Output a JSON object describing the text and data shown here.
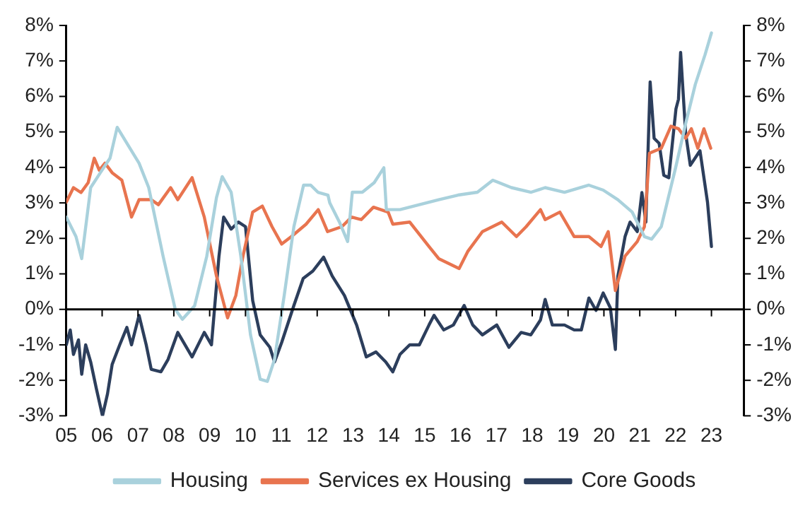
{
  "chart_data": {
    "type": "line",
    "legend": "bottom",
    "grid": false,
    "ref_lines": [
      {
        "axis": "y",
        "value": 0,
        "color": "#000000"
      }
    ],
    "marker": "none",
    "line_style": "solid",
    "xlim": [
      2005,
      2023.9
    ],
    "xticks": [
      {
        "value": 2005,
        "label": "05"
      },
      {
        "value": 2006,
        "label": "06"
      },
      {
        "value": 2007,
        "label": "07"
      },
      {
        "value": 2008,
        "label": "08"
      },
      {
        "value": 2009,
        "label": "09"
      },
      {
        "value": 2010,
        "label": "10"
      },
      {
        "value": 2011,
        "label": "11"
      },
      {
        "value": 2012,
        "label": "12"
      },
      {
        "value": 2013,
        "label": "13"
      },
      {
        "value": 2014,
        "label": "14"
      },
      {
        "value": 2015,
        "label": "15"
      },
      {
        "value": 2016,
        "label": "16"
      },
      {
        "value": 2017,
        "label": "17"
      },
      {
        "value": 2018,
        "label": "18"
      },
      {
        "value": 2019,
        "label": "19"
      },
      {
        "value": 2020,
        "label": "20"
      },
      {
        "value": 2021,
        "label": "21"
      },
      {
        "value": 2022,
        "label": "22"
      },
      {
        "value": 2023,
        "label": "23"
      }
    ],
    "ylim": [
      -3,
      8
    ],
    "yticks": [
      {
        "value": -3,
        "label": "-3%"
      },
      {
        "value": -2,
        "label": "-2%"
      },
      {
        "value": -1,
        "label": "-1%"
      },
      {
        "value": 0,
        "label": "0%"
      },
      {
        "value": 1,
        "label": "1%"
      },
      {
        "value": 2,
        "label": "2%"
      },
      {
        "value": 3,
        "label": "3%"
      },
      {
        "value": 4,
        "label": "4%"
      },
      {
        "value": 5,
        "label": "5%"
      },
      {
        "value": 6,
        "label": "6%"
      },
      {
        "value": 7,
        "label": "7%"
      },
      {
        "value": 8,
        "label": "8%"
      }
    ],
    "y2lim": [
      -3,
      8
    ],
    "y2ticks": [
      {
        "value": -3,
        "label": "-3%"
      },
      {
        "value": -2,
        "label": "-2%"
      },
      {
        "value": -1,
        "label": "-1%"
      },
      {
        "value": 0,
        "label": "0%"
      },
      {
        "value": 1,
        "label": "1%"
      },
      {
        "value": 2,
        "label": "2%"
      },
      {
        "value": 3,
        "label": "3%"
      },
      {
        "value": 4,
        "label": "4%"
      },
      {
        "value": 5,
        "label": "5%"
      },
      {
        "value": 6,
        "label": "6%"
      },
      {
        "value": 7,
        "label": "7%"
      },
      {
        "value": 8,
        "label": "8%"
      }
    ],
    "series": [
      {
        "name": "Housing",
        "color": "#a9d1dc",
        "x": [
          2005.0,
          2005.27,
          2005.43,
          2005.68,
          2005.95,
          2006.22,
          2006.42,
          2006.69,
          2007.03,
          2007.3,
          2007.7,
          2008.04,
          2008.24,
          2008.58,
          2008.92,
          2009.19,
          2009.35,
          2009.6,
          2009.87,
          2010.14,
          2010.41,
          2010.61,
          2010.81,
          2011.08,
          2011.35,
          2011.62,
          2011.82,
          2012.02,
          2012.3,
          2012.35,
          2012.62,
          2012.85,
          2012.98,
          2013.26,
          2013.59,
          2013.86,
          2013.93,
          2014.31,
          2014.85,
          2015.39,
          2015.93,
          2016.47,
          2016.9,
          2017.42,
          2017.97,
          2018.36,
          2018.9,
          2019.58,
          2019.98,
          2020.39,
          2020.79,
          2021.13,
          2021.33,
          2021.6,
          2022.0,
          2022.28,
          2022.55,
          2022.82,
          2023.0
        ],
        "values": [
          2.6,
          2.05,
          1.43,
          3.43,
          3.85,
          4.26,
          5.13,
          4.68,
          4.12,
          3.43,
          1.5,
          0.0,
          -0.28,
          0.1,
          1.5,
          3.15,
          3.74,
          3.3,
          1.5,
          -0.72,
          -1.97,
          -2.03,
          -1.41,
          0.39,
          2.33,
          3.5,
          3.5,
          3.3,
          3.22,
          3.0,
          2.46,
          1.91,
          3.3,
          3.3,
          3.57,
          3.99,
          2.81,
          2.81,
          2.95,
          3.09,
          3.22,
          3.3,
          3.64,
          3.43,
          3.3,
          3.43,
          3.3,
          3.5,
          3.36,
          3.09,
          2.74,
          2.05,
          1.98,
          2.33,
          3.99,
          5.23,
          6.34,
          7.17,
          7.79
        ]
      },
      {
        "name": "Services ex Housing",
        "color": "#e8744f",
        "x": [
          2005.0,
          2005.2,
          2005.41,
          2005.61,
          2005.78,
          2005.92,
          2006.08,
          2006.28,
          2006.55,
          2006.82,
          2007.03,
          2007.37,
          2007.57,
          2007.91,
          2008.11,
          2008.51,
          2008.85,
          2009.19,
          2009.5,
          2009.73,
          2009.93,
          2010.2,
          2010.47,
          2010.74,
          2011.01,
          2011.28,
          2011.69,
          2012.03,
          2012.29,
          2012.69,
          2012.96,
          2013.23,
          2013.57,
          2013.98,
          2014.11,
          2014.58,
          2015.12,
          2015.39,
          2015.96,
          2016.2,
          2016.61,
          2017.15,
          2017.56,
          2017.83,
          2018.23,
          2018.36,
          2018.77,
          2019.17,
          2019.58,
          2019.92,
          2020.12,
          2020.32,
          2020.59,
          2020.93,
          2021.13,
          2021.27,
          2021.6,
          2021.87,
          2022.08,
          2022.28,
          2022.44,
          2022.62,
          2022.79,
          2022.98
        ],
        "values": [
          3.02,
          3.43,
          3.29,
          3.57,
          4.26,
          3.92,
          4.12,
          3.85,
          3.64,
          2.6,
          3.09,
          3.09,
          2.95,
          3.43,
          3.09,
          3.71,
          2.6,
          0.94,
          -0.24,
          0.39,
          1.5,
          2.74,
          2.91,
          2.33,
          1.84,
          2.05,
          2.4,
          2.81,
          2.19,
          2.33,
          2.6,
          2.53,
          2.88,
          2.74,
          2.4,
          2.46,
          1.77,
          1.43,
          1.15,
          1.63,
          2.19,
          2.46,
          2.05,
          2.33,
          2.81,
          2.53,
          2.74,
          2.05,
          2.05,
          1.77,
          2.19,
          0.53,
          1.5,
          1.91,
          2.33,
          4.4,
          4.54,
          5.16,
          5.09,
          4.82,
          5.09,
          4.54,
          5.09,
          4.54
        ]
      },
      {
        "name": "Core Goods",
        "color": "#2c3e5c",
        "x": [
          2005.0,
          2005.11,
          2005.2,
          2005.34,
          2005.43,
          2005.54,
          2005.68,
          2005.84,
          2006.01,
          2006.15,
          2006.28,
          2006.49,
          2006.69,
          2006.82,
          2007.03,
          2007.23,
          2007.37,
          2007.64,
          2007.84,
          2008.11,
          2008.51,
          2008.85,
          2009.05,
          2009.26,
          2009.39,
          2009.6,
          2009.8,
          2010.0,
          2010.2,
          2010.41,
          2010.68,
          2010.81,
          2011.01,
          2011.35,
          2011.61,
          2011.88,
          2012.18,
          2012.42,
          2012.76,
          2013.1,
          2013.37,
          2013.64,
          2013.91,
          2014.11,
          2014.31,
          2014.58,
          2014.85,
          2015.12,
          2015.26,
          2015.53,
          2015.8,
          2016.1,
          2016.34,
          2016.61,
          2017.01,
          2017.35,
          2017.69,
          2017.96,
          2018.23,
          2018.36,
          2018.56,
          2018.9,
          2019.17,
          2019.37,
          2019.58,
          2019.78,
          2019.98,
          2020.18,
          2020.32,
          2020.39,
          2020.59,
          2020.73,
          2020.93,
          2021.06,
          2021.17,
          2021.29,
          2021.4,
          2021.54,
          2021.67,
          2021.81,
          2022.01,
          2022.08,
          2022.14,
          2022.28,
          2022.41,
          2022.68,
          2022.89,
          2023.0
        ],
        "values": [
          -1.0,
          -0.58,
          -1.27,
          -0.86,
          -1.83,
          -1.0,
          -1.48,
          -2.24,
          -3.0,
          -2.38,
          -1.55,
          -1.0,
          -0.51,
          -1.0,
          -0.17,
          -1.0,
          -1.69,
          -1.76,
          -1.41,
          -0.65,
          -1.34,
          -0.65,
          -1.0,
          1.5,
          2.6,
          2.26,
          2.46,
          2.33,
          0.25,
          -0.72,
          -1.07,
          -1.48,
          -0.93,
          0.11,
          0.87,
          1.08,
          1.47,
          0.94,
          0.39,
          -0.44,
          -1.34,
          -1.2,
          -1.48,
          -1.76,
          -1.27,
          -1.0,
          -1.0,
          -0.44,
          -0.17,
          -0.58,
          -0.44,
          0.11,
          -0.44,
          -0.72,
          -0.44,
          -1.07,
          -0.65,
          -0.72,
          -0.3,
          0.28,
          -0.44,
          -0.44,
          -0.58,
          -0.58,
          0.32,
          -0.03,
          0.46,
          0.04,
          -1.13,
          0.94,
          2.05,
          2.46,
          2.19,
          3.29,
          2.46,
          6.41,
          4.82,
          4.68,
          3.78,
          3.71,
          5.65,
          5.92,
          7.24,
          4.96,
          4.06,
          4.47,
          3.02,
          1.77
        ]
      }
    ]
  }
}
